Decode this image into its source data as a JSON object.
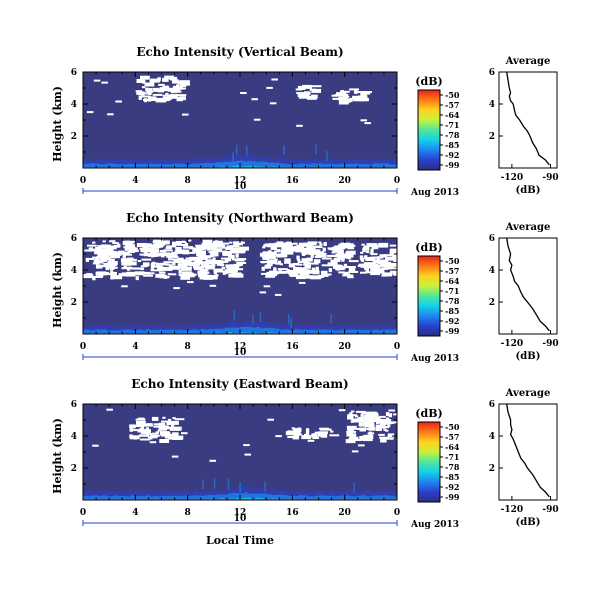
{
  "figure": {
    "date_label": "Aug 2013",
    "xlabel": "Local Time",
    "ylabel": "Height (km)",
    "colorbar_unit": "(dB)",
    "colorbar_ticks": [
      "-50",
      "-57",
      "-64",
      "-71",
      "-78",
      "-85",
      "-92",
      "-99"
    ],
    "colorbar_colors": [
      "#2b2f7e",
      "#2a3fd0",
      "#1f86f0",
      "#12d1e8",
      "#4fe79a",
      "#c7f23c",
      "#ffd21f",
      "#ff7a18",
      "#e8231c"
    ],
    "background_color": "#3a3c82",
    "gap_color": "#ffffff",
    "avg_title": "Average",
    "avg_xlabel": "(dB)",
    "avg_xticks": [
      "-120",
      "-90"
    ],
    "avg_yticks": [
      "2",
      "4",
      "6"
    ],
    "time_ticks": [
      "0",
      "4",
      "8",
      "12",
      "16",
      "20",
      "0"
    ],
    "height_ticks": [
      "2",
      "4",
      "6"
    ],
    "day_label": "10"
  },
  "chart_data": [
    {
      "type": "heatmap",
      "title": "Echo Intensity (Vertical Beam)",
      "x": "Local Time (h)",
      "xlim": [
        0,
        24
      ],
      "ylim": [
        0,
        6
      ],
      "color_range_dB": [
        -99,
        -50
      ],
      "description_values": {
        "near_ground_max_dB": -78,
        "upper_level_dB": -99
      },
      "gaps": [
        {
          "t0": 4.0,
          "t1": 7.5,
          "h0": 4.3,
          "h1": 5.8
        },
        {
          "t0": 16.0,
          "t1": 17.5,
          "h0": 4.5,
          "h1": 5.2
        },
        {
          "t0": 19.0,
          "t1": 21.5,
          "h0": 4.2,
          "h1": 5.0
        }
      ],
      "average_profile": {
        "heights": [
          6.0,
          5.5,
          5.0,
          4.7,
          4.5,
          4.2,
          4.0,
          3.6,
          3.3,
          3.0,
          2.6,
          2.3,
          2.0,
          1.6,
          1.2,
          0.8,
          0.5,
          0.2
        ],
        "dB": [
          -124,
          -123,
          -122,
          -121,
          -122,
          -121,
          -119,
          -118,
          -117,
          -114,
          -111,
          -108,
          -106,
          -104,
          -101,
          -99,
          -94,
          -91
        ]
      }
    },
    {
      "type": "heatmap",
      "title": "Echo Intensity (Northward Beam)",
      "x": "Local Time (h)",
      "xlim": [
        0,
        24
      ],
      "ylim": [
        0,
        6
      ],
      "color_range_dB": [
        -99,
        -50
      ],
      "description_values": {
        "near_ground_max_dB": -85,
        "upper_level_dB": -99
      },
      "gaps": [
        {
          "t0": 0.0,
          "t1": 12.0,
          "h0": 3.6,
          "h1": 5.9
        },
        {
          "t0": 13.5,
          "t1": 20.5,
          "h0": 3.6,
          "h1": 5.8
        },
        {
          "t0": 21.0,
          "t1": 24.0,
          "h0": 3.8,
          "h1": 5.7
        }
      ],
      "average_profile": {
        "heights": [
          6.0,
          5.5,
          5.0,
          4.6,
          4.3,
          4.0,
          3.6,
          3.3,
          3.0,
          2.6,
          2.3,
          2.0,
          1.6,
          1.2,
          0.8,
          0.5,
          0.2
        ],
        "dB": [
          -124,
          -123,
          -121,
          -122,
          -120,
          -121,
          -119,
          -118,
          -115,
          -113,
          -111,
          -108,
          -104,
          -101,
          -98,
          -94,
          -91
        ]
      }
    },
    {
      "type": "heatmap",
      "title": "Echo Intensity (Eastward Beam)",
      "x": "Local Time (h)",
      "xlim": [
        0,
        24
      ],
      "ylim": [
        0,
        6
      ],
      "color_range_dB": [
        -99,
        -50
      ],
      "description_values": {
        "near_ground_max_dB": -85,
        "upper_level_dB": -99
      },
      "gaps": [
        {
          "t0": 3.5,
          "t1": 7.0,
          "h0": 3.8,
          "h1": 5.2
        },
        {
          "t0": 15.5,
          "t1": 19.0,
          "h0": 4.0,
          "h1": 4.6
        },
        {
          "t0": 20.0,
          "t1": 23.5,
          "h0": 3.8,
          "h1": 5.6
        }
      ],
      "average_profile": {
        "heights": [
          6.0,
          5.5,
          5.0,
          4.7,
          4.4,
          4.1,
          3.8,
          3.4,
          3.0,
          2.6,
          2.3,
          2.0,
          1.6,
          1.2,
          0.8,
          0.5,
          0.2
        ],
        "dB": [
          -124,
          -123,
          -121,
          -121,
          -120,
          -121,
          -119,
          -117,
          -115,
          -113,
          -110,
          -108,
          -104,
          -101,
          -98,
          -94,
          -91
        ]
      }
    }
  ]
}
